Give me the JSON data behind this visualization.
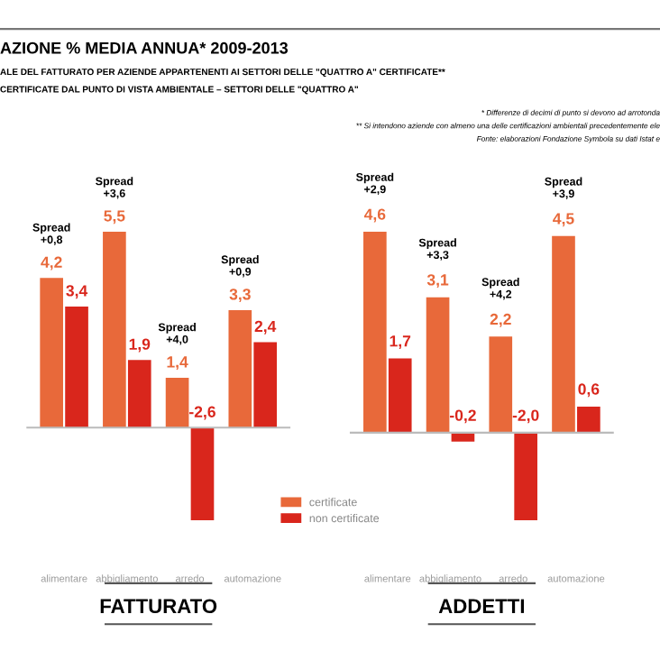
{
  "chart_data": [
    {
      "type": "other",
      "title": "AZIONE % MEDIA ANNUA* 2009-2013",
      "subtitle": "ALE DEL FATTURATO PER AZIENDE APPARTENENTI AI SETTORI DELLE \"QUATTRO A\" CERTIFICATE**\nCERTIFICATE DAL PUNTO DI VISTA AMBIENTALE – SETTORI DELLE \"QUATTRO A\"",
      "annotations": [
        "* Differenze di decimi di punto si devono ad arrotonda",
        "** Si intendono aziende con almeno una delle certificazioni ambientali precedentemente ele",
        "Fonte: elaborazioni Fondazione Symbola su dati Istat e"
      ]
    },
    {
      "type": "bar",
      "title": "FATTURATO",
      "categories": [
        "alimentare",
        "abbigliamento",
        "arredo",
        "automazione"
      ],
      "series": [
        {
          "name": "certificate",
          "color": "#e8693a",
          "values": [
            4.2,
            5.5,
            1.4,
            3.3
          ],
          "value_labels": [
            "4,2",
            "5,5",
            "1,4",
            "3,3"
          ]
        },
        {
          "name": "non certificate",
          "color": "#d9261c",
          "values": [
            3.4,
            1.9,
            -2.6,
            2.4
          ],
          "value_labels": [
            "3,4",
            "1,9",
            "-2,6",
            "2,4"
          ]
        }
      ],
      "annotations": [
        "Spread\n+0,8",
        "Spread\n+3,6",
        "Spread\n+4,0",
        "Spread\n+0,9"
      ],
      "legend": "bottom right"
    },
    {
      "type": "bar",
      "title": "ADDETTI",
      "categories": [
        "alimentare",
        "abbigliamento",
        "arredo",
        "automazione"
      ],
      "series": [
        {
          "color": "#e8693a",
          "values": [
            4.6,
            3.1,
            2.2,
            4.5
          ],
          "value_labels": [
            "4,6",
            "3,1",
            "2,2",
            "4,5"
          ]
        },
        {
          "color": "#d9261c",
          "values": [
            1.7,
            -0.2,
            -2.0,
            0.6
          ],
          "value_labels": [
            "1,7",
            "-0,2",
            "-2,0",
            "0,6"
          ]
        }
      ],
      "annotations": [
        "Spread\n+2,9",
        "Spread\n+3,3",
        "Spread\n+4,2",
        "Spread\n+3,9"
      ]
    }
  ]
}
